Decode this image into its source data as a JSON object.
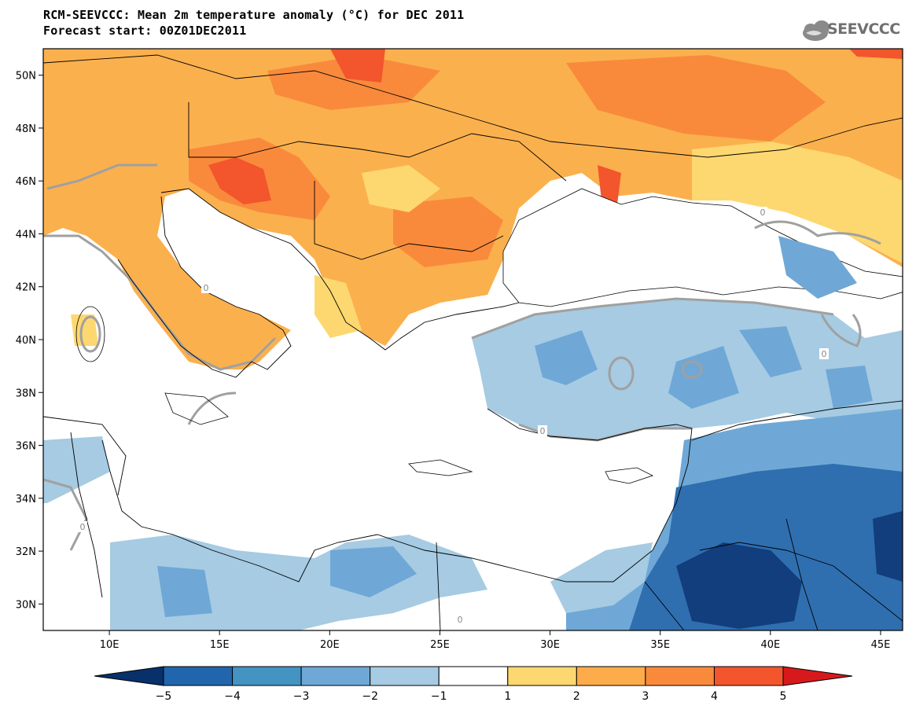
{
  "title_line1": "RCM-SEEVCCC: Mean 2m temperature anomaly (°C) for DEC 2011",
  "title_line2": "Forecast start: 00Z01DEC2011",
  "logo_text": "SEEVCCC",
  "logo_icon": "cloud-icon",
  "map": {
    "lon_range": [
      7,
      46
    ],
    "lat_range": [
      29,
      51
    ],
    "lat_ticks": [
      {
        "value": 50,
        "label": "50N"
      },
      {
        "value": 48,
        "label": "48N"
      },
      {
        "value": 46,
        "label": "46N"
      },
      {
        "value": 44,
        "label": "44N"
      },
      {
        "value": 42,
        "label": "42N"
      },
      {
        "value": 40,
        "label": "40N"
      },
      {
        "value": 38,
        "label": "38N"
      },
      {
        "value": 36,
        "label": "36N"
      },
      {
        "value": 34,
        "label": "34N"
      },
      {
        "value": 32,
        "label": "32N"
      },
      {
        "value": 30,
        "label": "30N"
      }
    ],
    "lon_ticks": [
      {
        "value": 10,
        "label": "10E"
      },
      {
        "value": 15,
        "label": "15E"
      },
      {
        "value": 20,
        "label": "20E"
      },
      {
        "value": 25,
        "label": "25E"
      },
      {
        "value": 30,
        "label": "30E"
      },
      {
        "value": 35,
        "label": "35E"
      },
      {
        "value": 40,
        "label": "40E"
      },
      {
        "value": 45,
        "label": "45E"
      }
    ],
    "contour_label": "0"
  },
  "colorbar": {
    "boundaries": [
      "−5",
      "−4",
      "−3",
      "−2",
      "−1",
      "1",
      "2",
      "3",
      "4",
      "5"
    ],
    "colors": [
      "#08306b",
      "#2166ac",
      "#4393c3",
      "#6fa8d6",
      "#a6cbe3",
      "#ffffff",
      "#fdd870",
      "#fcac4a",
      "#f98a3c",
      "#f3552c",
      "#d7191c"
    ]
  },
  "colors": {
    "land_warm": "#fbb04e",
    "cool_light": "#a6cbe3",
    "cool_mid": "#6fa8d6",
    "cool_dark": "#2f6fb0",
    "cool_darkest": "#123e7e",
    "contour_gray": "#a0a0a0"
  }
}
